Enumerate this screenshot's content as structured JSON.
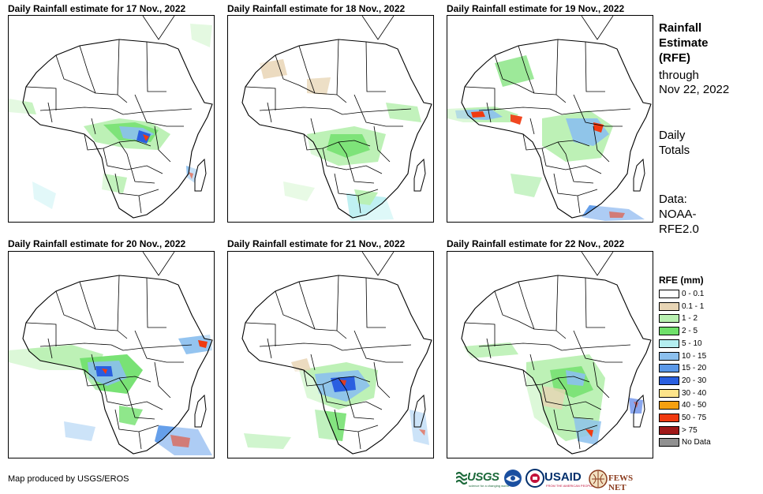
{
  "panels": [
    {
      "title": "Daily Rainfall estimate for 17 Nov., 2022"
    },
    {
      "title": "Daily Rainfall estimate for 18 Nov., 2022"
    },
    {
      "title": "Daily Rainfall estimate for 19 Nov., 2022"
    },
    {
      "title": "Daily Rainfall estimate for 20 Nov., 2022"
    },
    {
      "title": "Daily Rainfall estimate for 21 Nov., 2022"
    },
    {
      "title": "Daily Rainfall estimate for 22 Nov., 2022"
    }
  ],
  "sidebar": {
    "title_line1": "Rainfall",
    "title_line2": "Estimate",
    "title_line3": "(RFE)",
    "through_label": "through",
    "through_date": "Nov 22, 2022",
    "daily_line1": "Daily",
    "daily_line2": "Totals",
    "data_line1": "Data:",
    "data_line2": "NOAA-",
    "data_line3": "RFE2.0"
  },
  "legend": {
    "title": "RFE (mm)",
    "items": [
      {
        "label": "0 - 0.1",
        "color": "#ffffff"
      },
      {
        "label": "0.1 - 1",
        "color": "#e8d5b5"
      },
      {
        "label": "1 - 2",
        "color": "#b8f0b0"
      },
      {
        "label": "2 - 5",
        "color": "#6fe06a"
      },
      {
        "label": "5 - 10",
        "color": "#b4eef0"
      },
      {
        "label": "10 - 15",
        "color": "#8cc0ee"
      },
      {
        "label": "15 - 20",
        "color": "#5a98e8"
      },
      {
        "label": "20 - 30",
        "color": "#2a5fe0"
      },
      {
        "label": "30 - 40",
        "color": "#fde48a"
      },
      {
        "label": "40 - 50",
        "color": "#f5a010"
      },
      {
        "label": "50 - 75",
        "color": "#f03a10"
      },
      {
        "label": "> 75",
        "color": "#a01818"
      },
      {
        "label": "No Data",
        "color": "#909090"
      }
    ]
  },
  "footer": {
    "credit": "Map produced by USGS/EROS"
  },
  "logos": {
    "usgs": "USGS",
    "usgs_tagline": "science for a changing world",
    "usaid": "USAID",
    "usaid_tagline": "FROM THE AMERICAN PEOPLE",
    "fews": "FEWS NET"
  }
}
